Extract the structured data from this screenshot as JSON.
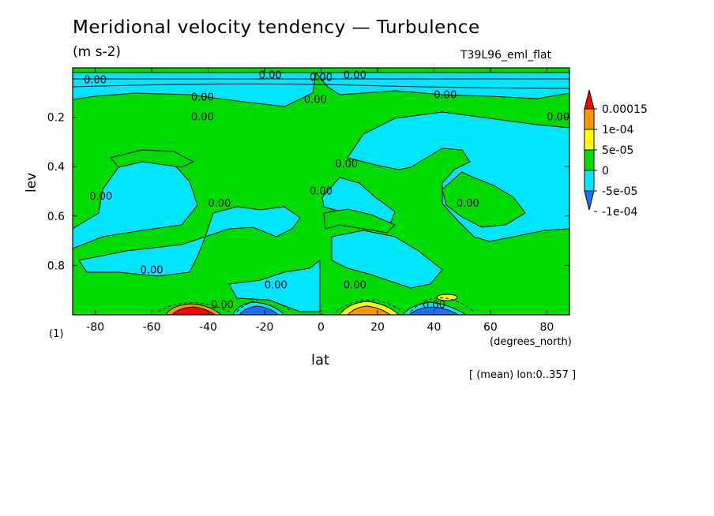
{
  "chart_data": {
    "type": "heatmap",
    "title": "Meridional velocity tendency — Turbulence",
    "units": "(m s-2)",
    "experiment": "T39L96_eml_flat",
    "xlabel": "lat",
    "x_units": "(degrees_north)",
    "ylabel": "lev",
    "y_units": "(1)",
    "note": "[ (mean) lon:0..357 ]",
    "xlim": [
      -88,
      88
    ],
    "ylim": [
      1.0,
      0.0
    ],
    "x_ticks": [
      "-80",
      "-60",
      "-40",
      "-20",
      "0",
      "20",
      "40",
      "60",
      "80"
    ],
    "y_ticks": [
      "0.2",
      "0.4",
      "0.6",
      "0.8"
    ],
    "colorbar": {
      "labels": [
        "0.00015",
        "1e-04",
        "5e-05",
        "0",
        "-5e-05",
        "-1e-04"
      ],
      "colors": [
        "#1e6eff",
        "#00e6ff",
        "#00dc00",
        "#ffff00",
        "#ff9600",
        "#ff0000"
      ],
      "levels": [
        -0.0001,
        -5e-05,
        0,
        5e-05,
        0.0001,
        0.00015
      ]
    },
    "contour_label": "0.00",
    "contour_label_positions": [
      [
        -80,
        0.05
      ],
      [
        -42,
        0.12
      ],
      [
        -42,
        0.2
      ],
      [
        -78,
        0.52
      ],
      [
        -60,
        0.82
      ],
      [
        -36,
        0.55
      ],
      [
        -16,
        0.88
      ],
      [
        -35,
        0.96
      ],
      [
        -2,
        0.13
      ],
      [
        0,
        0.5
      ],
      [
        9,
        0.39
      ],
      [
        12,
        0.88
      ],
      [
        44,
        0.11
      ],
      [
        52,
        0.55
      ],
      [
        40,
        0.96
      ],
      [
        84,
        0.2
      ],
      [
        -18,
        0.03
      ],
      [
        12,
        0.03
      ],
      [
        0,
        0.04
      ]
    ],
    "features": [
      {
        "lat": -44,
        "lev": 1.0,
        "value": 0.00015,
        "note": "strong positive near surface"
      },
      {
        "lat": -20,
        "lev": 1.0,
        "value": -0.0001,
        "note": "negative near surface"
      },
      {
        "lat": 16,
        "lev": 1.0,
        "value": 0.0001,
        "note": "positive near surface"
      },
      {
        "lat": 42,
        "lev": 1.0,
        "value": -0.0001,
        "note": "negative near surface"
      },
      {
        "lat": 46,
        "lev": 0.96,
        "value": 5e-05,
        "note": "small positive cell"
      }
    ]
  }
}
